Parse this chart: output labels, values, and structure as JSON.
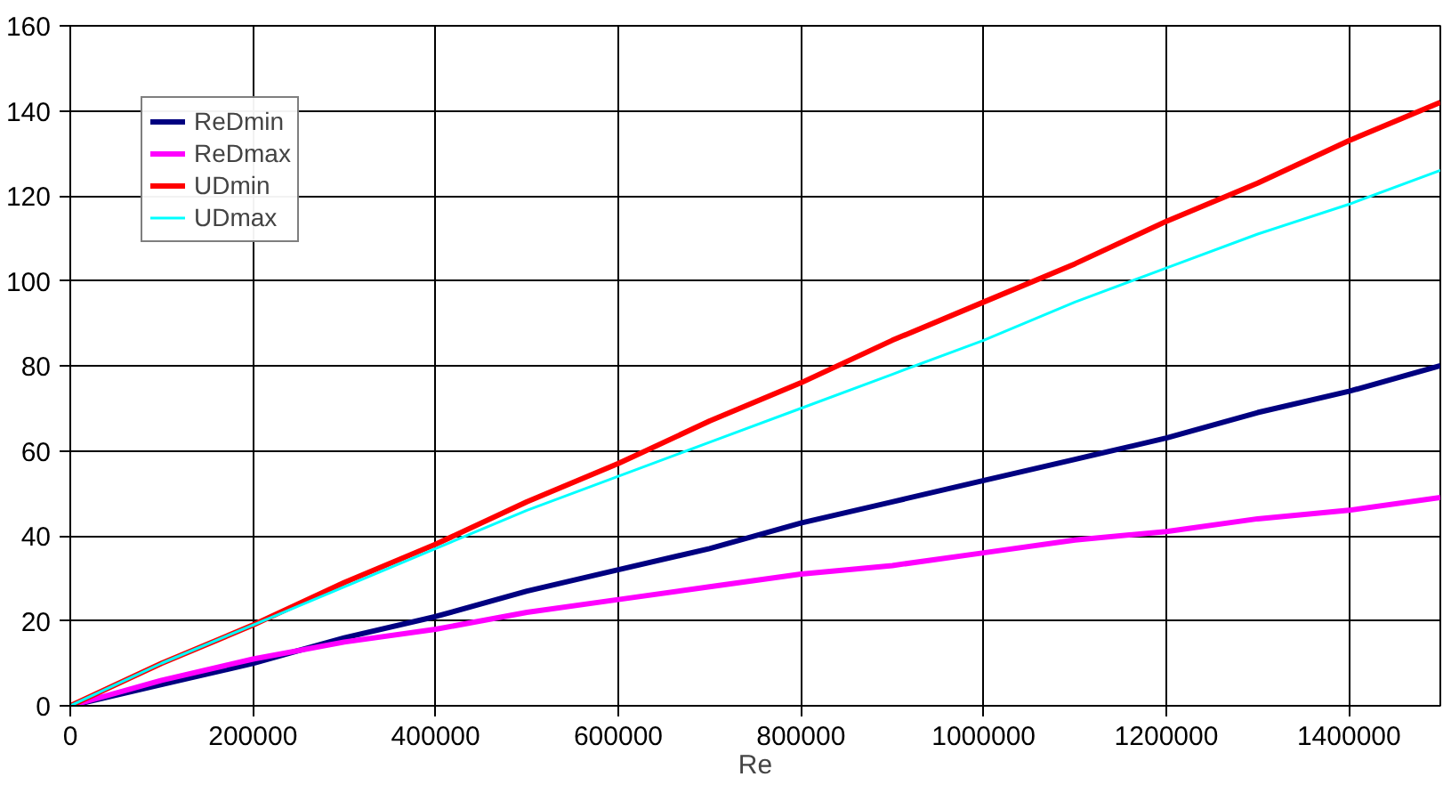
{
  "chart_data": {
    "type": "line",
    "xlabel": "Re",
    "x": [
      0,
      100000,
      200000,
      300000,
      400000,
      500000,
      600000,
      700000,
      800000,
      900000,
      1000000,
      1100000,
      1200000,
      1300000,
      1400000,
      1500000
    ],
    "series": [
      {
        "name": "ReDmin",
        "color": "#000080",
        "values": [
          0,
          5,
          10,
          16,
          21,
          27,
          32,
          37,
          43,
          48,
          53,
          58,
          63,
          69,
          74,
          80
        ]
      },
      {
        "name": "ReDmax",
        "color": "#ff00ff",
        "values": [
          0,
          6,
          11,
          15,
          18,
          22,
          25,
          28,
          31,
          33,
          36,
          39,
          41,
          44,
          46,
          49
        ]
      },
      {
        "name": "UDmin",
        "color": "#ff0000",
        "values": [
          0,
          10,
          19,
          29,
          38,
          48,
          57,
          67,
          76,
          86,
          95,
          104,
          114,
          123,
          133,
          142
        ]
      },
      {
        "name": "UDmax",
        "color": "#00ffff",
        "values": [
          0,
          10,
          19,
          28,
          37,
          46,
          54,
          62,
          70,
          78,
          86,
          95,
          103,
          111,
          118,
          126
        ]
      }
    ],
    "xlim": [
      0,
      1500000
    ],
    "ylim": [
      0,
      160
    ],
    "xticks": [
      0,
      200000,
      400000,
      600000,
      800000,
      1000000,
      1200000,
      1400000
    ],
    "yticks": [
      0,
      20,
      40,
      60,
      80,
      100,
      120,
      140,
      160
    ],
    "grid": true,
    "legend": "top left"
  }
}
